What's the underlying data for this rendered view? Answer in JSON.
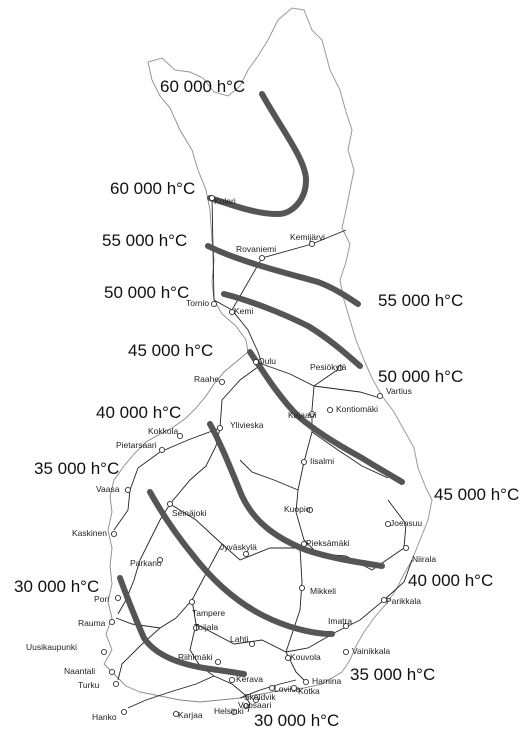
{
  "isolines": [
    {
      "value": "60 000 h°C"
    },
    {
      "value": "55 000 h°C"
    },
    {
      "value": "50 000 h°C"
    },
    {
      "value": "45 000 h°C"
    },
    {
      "value": "40 000 h°C"
    },
    {
      "value": "35 000 h°C"
    },
    {
      "value": "30 000 h°C"
    }
  ],
  "isoline_labels": [
    "60 000 h°C",
    "60 000 h°C",
    "55 000 h°C",
    "55 000 h°C",
    "50 000 h°C",
    "50 000 h°C",
    "45 000 h°C",
    "45 000 h°C",
    "40 000 h°C",
    "40 000 h°C",
    "35 000 h°C",
    "35 000 h°C",
    "30 000 h°C",
    "30 000 h°C"
  ],
  "towns": [
    "Kolari",
    "Rovaniemi",
    "Kemijärvi",
    "Tornio",
    "Kemi",
    "Oulu",
    "Pesiökylä",
    "Raahe",
    "Vartius",
    "Kajaani",
    "Kontiomäki",
    "Ylivieska",
    "Kokkola",
    "Pietarsaari",
    "Iisalmi",
    "Vaasa",
    "Seinäjoki",
    "Kuopio",
    "Joensuu",
    "Kaskinen",
    "Pieksämäki",
    "Niirala",
    "Parkano",
    "Jyväskylä",
    "Mikkeli",
    "Pori",
    "Parikkala",
    "Tampere",
    "Rauma",
    "Toijala",
    "Imatra",
    "Lahti",
    "Uusikaupunki",
    "Vainikkala",
    "Riihimäki",
    "Kouvola",
    "Naantali",
    "Turku",
    "Kerava",
    "Hamina",
    "Loviisa",
    "Kotka",
    "Sköldvik",
    "Vuosaari",
    "Helsinki",
    "Karjaa",
    "Hanko"
  ]
}
